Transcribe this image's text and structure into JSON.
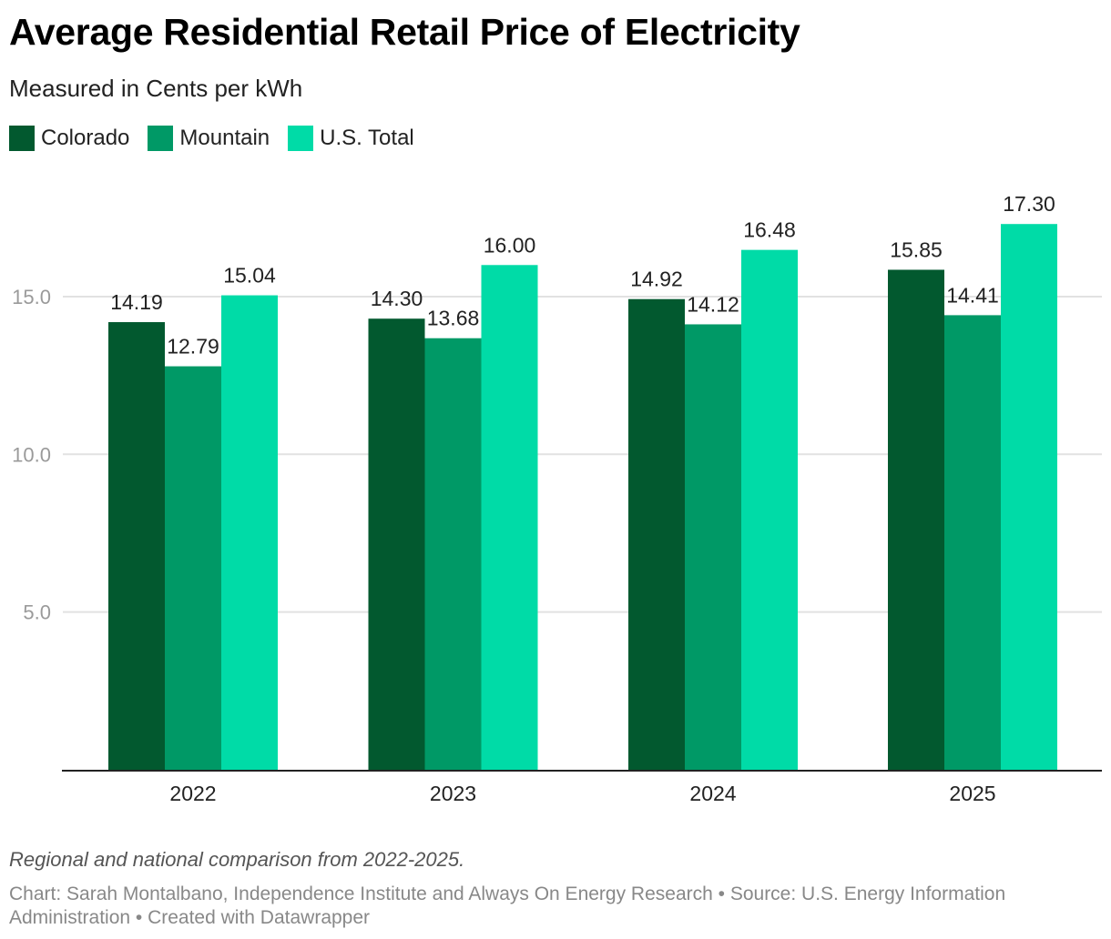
{
  "chart_data": {
    "type": "bar",
    "title": "Average Residential Retail Price of Electricity",
    "subtitle": "Measured in Cents per kWh",
    "categories": [
      "2022",
      "2023",
      "2024",
      "2025"
    ],
    "series": [
      {
        "name": "Colorado",
        "color": "#02592f",
        "values": [
          14.19,
          14.3,
          14.92,
          15.85
        ]
      },
      {
        "name": "Mountain",
        "color": "#009966",
        "values": [
          12.79,
          13.68,
          14.12,
          14.41
        ]
      },
      {
        "name": "U.S. Total",
        "color": "#00dba7",
        "values": [
          15.04,
          16.0,
          16.48,
          17.3
        ]
      }
    ],
    "data_labels": [
      [
        "14.19",
        "14.30",
        "14.92",
        "15.85"
      ],
      [
        "12.79",
        "13.68",
        "14.12",
        "14.41"
      ],
      [
        "15.04",
        "16.00",
        "16.48",
        "17.30"
      ]
    ],
    "yticks": [
      "5.0",
      "10.0",
      "15.0"
    ],
    "ylim": [
      0,
      17.3
    ],
    "grid": true,
    "legend": "top-left",
    "notes": "Regional and national comparison from 2022-2025.",
    "byline": "Chart: Sarah Montalbano, Independence Institute and Always On Energy Research • Source: U.S. Energy Information Administration • Created with Datawrapper"
  }
}
